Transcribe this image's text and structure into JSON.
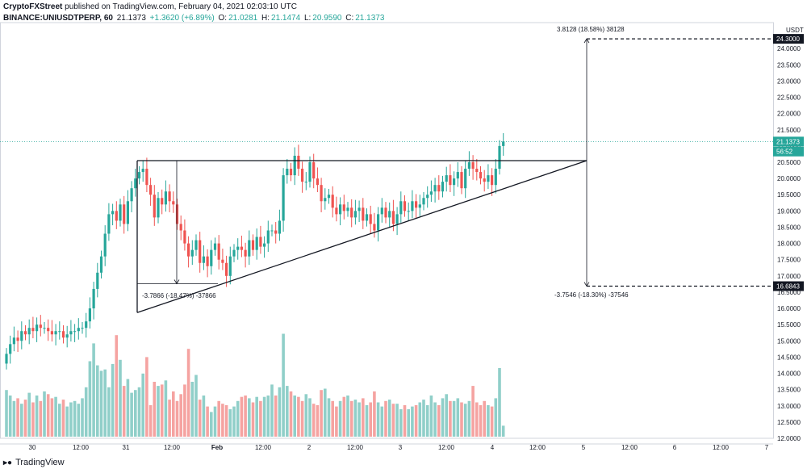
{
  "header": {
    "author": "CryptoFXStreet",
    "published": "published on TradingView.com, February 04, 2021 02:03:10 UTC",
    "symbol": "BINANCE:UNIUSDTPERP, 60",
    "last": "21.1373",
    "change": "+1.3620 (+6.89%)",
    "o_label": "O:",
    "o_val": "21.0281",
    "h_label": "H:",
    "h_val": "21.1474",
    "l_label": "L:",
    "l_val": "20.9590",
    "c_label": "C:",
    "c_val": "21.1373"
  },
  "footer": {
    "brand": "TradingView"
  },
  "colors": {
    "up": "#26a69a",
    "down": "#ef5350",
    "up_vol": "#90cfc9",
    "down_vol": "#f5a3a1",
    "line": "#131722",
    "grid": "#e0e3eb"
  },
  "chart_data": {
    "type": "candlestick",
    "unit": "USDT",
    "y_ticks": [
      "12.0000",
      "12.5000",
      "13.0000",
      "13.5000",
      "14.0000",
      "14.5000",
      "15.0000",
      "15.5000",
      "16.0000",
      "16.5000",
      "17.0000",
      "17.5000",
      "18.0000",
      "18.5000",
      "19.0000",
      "19.5000",
      "20.0000",
      "20.5000",
      "21.0000",
      "21.5000",
      "22.0000",
      "22.5000",
      "23.0000",
      "23.5000",
      "24.0000"
    ],
    "x_ticks": [
      "30",
      "12:00",
      "31",
      "12:00",
      "Feb",
      "12:00",
      "2",
      "12:00",
      "3",
      "12:00",
      "4",
      "12:00",
      "5",
      "12:00",
      "6",
      "12:00",
      "7"
    ],
    "ylim": [
      12.0,
      24.8
    ],
    "price_labels": [
      {
        "text": "24.3000",
        "value": 24.3,
        "style": "dark"
      },
      {
        "text": "21.1373",
        "value": 21.1373,
        "style": "green"
      },
      {
        "text": "56:52",
        "value": 20.83,
        "style": "green"
      },
      {
        "text": "16.6843",
        "value": 16.6843,
        "style": "dark"
      }
    ],
    "annotations": [
      {
        "text": "3.8128 (18.58%) 38128"
      },
      {
        "text": "-3.7866 (-18.47%) -37866"
      },
      {
        "text": "-3.7546 (-18.30%) -37546"
      }
    ],
    "levels": {
      "resistance": 20.55,
      "target_up": 24.3,
      "target_down": 16.6843,
      "pattern_low": 16.76,
      "pattern_left_low": 15.87
    },
    "closes": [
      14.6,
      14.9,
      15.1,
      15.0,
      15.3,
      15.2,
      15.4,
      15.3,
      15.5,
      15.4,
      15.4,
      15.3,
      15.2,
      15.3,
      15.3,
      15.1,
      15.2,
      15.3,
      15.3,
      15.4,
      15.4,
      15.6,
      16.0,
      16.6,
      17.1,
      17.6,
      18.3,
      18.9,
      19.0,
      18.7,
      19.2,
      18.6,
      19.3,
      19.7,
      20.0,
      20.2,
      20.3,
      19.8,
      19.5,
      18.8,
      19.4,
      19.2,
      19.6,
      19.3,
      19.2,
      18.6,
      18.4,
      18.0,
      17.6,
      17.8,
      18.1,
      17.4,
      17.6,
      17.3,
      17.8,
      18.0,
      17.5,
      17.4,
      17.0,
      17.6,
      17.8,
      17.9,
      17.8,
      17.6,
      18.1,
      17.8,
      18.2,
      17.9,
      18.0,
      18.4,
      18.4,
      18.3,
      18.7,
      20.1,
      20.3,
      20.1,
      20.7,
      20.3,
      19.9,
      19.9,
      20.5,
      20.0,
      19.8,
      19.3,
      19.4,
      19.5,
      19.1,
      18.9,
      19.2,
      19.0,
      19.1,
      18.8,
      19.0,
      19.1,
      18.7,
      18.9,
      18.6,
      18.4,
      18.9,
      19.1,
      18.8,
      19.0,
      18.6,
      18.9,
      19.3,
      19.0,
      19.0,
      19.3,
      19.1,
      19.2,
      19.4,
      19.5,
      19.6,
      19.8,
      19.6,
      19.9,
      20.1,
      19.8,
      20.0,
      20.2,
      19.7,
      20.3,
      20.5,
      20.3,
      20.2,
      20.0,
      19.9,
      20.1,
      19.8,
      20.3,
      21.0,
      21.1373
    ],
    "volumes": [
      3.4,
      3.0,
      2.6,
      2.8,
      2.4,
      2.7,
      3.2,
      2.5,
      3.0,
      2.6,
      3.3,
      3.1,
      2.8,
      2.9,
      2.4,
      2.7,
      2.2,
      2.5,
      2.6,
      2.4,
      2.8,
      3.6,
      5.5,
      6.8,
      5.2,
      4.8,
      4.9,
      3.6,
      5.3,
      7.4,
      5.6,
      3.7,
      4.2,
      3.2,
      3.4,
      3.6,
      4.6,
      5.8,
      2.3,
      4.0,
      3.7,
      3.8,
      4.1,
      2.7,
      3.3,
      2.6,
      3.1,
      3.8,
      6.4,
      4.0,
      4.5,
      2.7,
      3.0,
      2.2,
      1.8,
      2.2,
      2.6,
      2.4,
      2.3,
      2.0,
      2.2,
      2.6,
      2.9,
      3.0,
      2.8,
      2.5,
      2.9,
      2.6,
      2.9,
      3.0,
      3.8,
      3.0,
      3.6,
      7.5,
      3.7,
      3.3,
      3.0,
      2.9,
      2.6,
      3.1,
      2.8,
      2.4,
      2.3,
      3.4,
      3.5,
      2.8,
      2.6,
      2.2,
      2.6,
      2.9,
      3.0,
      2.6,
      2.7,
      2.5,
      2.8,
      2.3,
      2.5,
      3.3,
      2.5,
      2.2,
      2.6,
      2.7,
      2.4,
      2.4,
      2.0,
      2.3,
      2.0,
      2.2,
      2.3,
      2.5,
      2.7,
      2.3,
      3.0,
      2.5,
      2.3,
      2.8,
      3.1,
      2.6,
      2.6,
      2.8,
      2.5,
      2.4,
      2.6,
      3.7,
      2.5,
      2.3,
      2.6,
      2.3,
      2.2,
      2.8,
      5.0,
      0.8
    ]
  }
}
